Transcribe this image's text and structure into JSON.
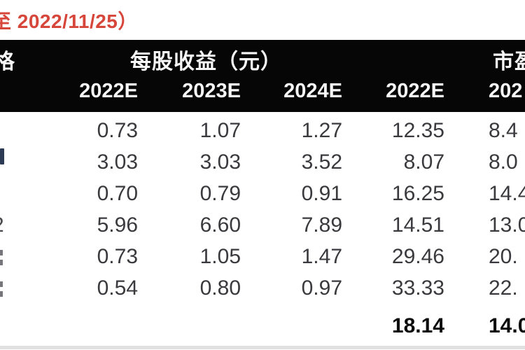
{
  "note": {
    "text": "至 2022/11/25）",
    "color": "#d6463a"
  },
  "table": {
    "group_headers": {
      "price_partial": "格",
      "eps": "每股收益（元）",
      "pe_partial": "市盈"
    },
    "year_headers": [
      "2022E",
      "2023E",
      "2024E",
      "2022E",
      "202"
    ],
    "rows": [
      {
        "cells": [
          "0.73",
          "1.07",
          "1.27",
          "12.35",
          "8.4"
        ]
      },
      {
        "cells": [
          "3.03",
          "3.03",
          "3.52",
          "8.07",
          "8.0"
        ]
      },
      {
        "cells": [
          "0.70",
          "0.79",
          "0.91",
          "16.25",
          "14.4"
        ]
      },
      {
        "cells": [
          "5.96",
          "6.60",
          "7.89",
          "14.51",
          "13.0"
        ]
      },
      {
        "cells": [
          "0.73",
          "1.05",
          "1.47",
          "29.46",
          "20."
        ]
      },
      {
        "cells": [
          "0.54",
          "0.80",
          "0.97",
          "33.33",
          "22."
        ]
      }
    ],
    "summary": {
      "cells": [
        "",
        "",
        "",
        "18.14",
        "14.0"
      ]
    },
    "fragment_glyph": "2"
  },
  "colors": {
    "header_band": "#060606",
    "header_text": "#f7f7f7",
    "value_text": "#3a3a3e",
    "summary_text": "#0b0b0b",
    "note_red": "#d6463a"
  }
}
